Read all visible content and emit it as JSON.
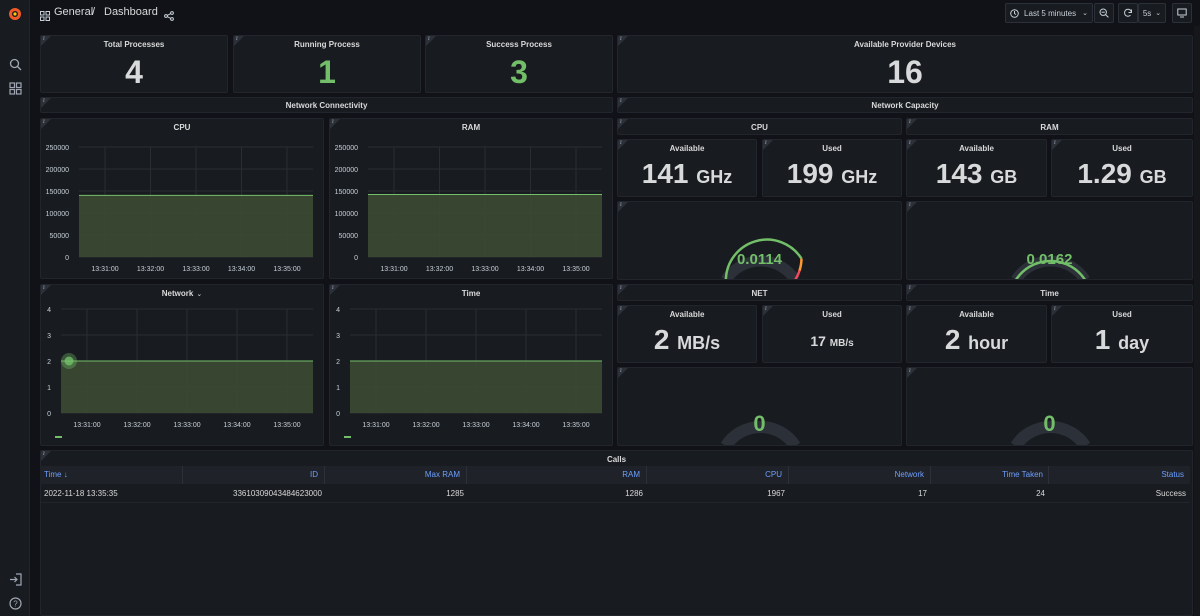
{
  "breadcrumb": {
    "folder": "General",
    "separator": "/",
    "page": "Dashboard"
  },
  "toolbar": {
    "time_range": "Last 5 minutes",
    "refresh_interval": "5s"
  },
  "stats": {
    "total_processes": {
      "title": "Total Processes",
      "value": "4"
    },
    "running_process": {
      "title": "Running Process",
      "value": "1"
    },
    "success_process": {
      "title": "Success Process",
      "value": "3"
    },
    "available_devices": {
      "title": "Available Provider Devices",
      "value": "16"
    }
  },
  "rows": {
    "network_connectivity": "Network Connectivity",
    "network_capacity": "Network Capacity",
    "calls": "Calls"
  },
  "capacity": {
    "cpu": {
      "title": "CPU",
      "available_label": "Available",
      "available_value": "141",
      "available_unit": "GHz",
      "used_label": "Used",
      "used_value": "199",
      "used_unit": "GHz",
      "gauge_value": "0.0114"
    },
    "ram": {
      "title": "RAM",
      "available_label": "Available",
      "available_value": "143",
      "available_unit": "GB",
      "used_label": "Used",
      "used_value": "1.29",
      "used_unit": "GB",
      "gauge_value": "0.0162"
    },
    "net": {
      "title": "NET",
      "available_label": "Available",
      "available_value": "2",
      "available_unit": "MB/s",
      "used_label": "Used",
      "used_value": "17",
      "used_unit": "MB/s",
      "gauge_value": "0"
    },
    "time": {
      "title": "Time",
      "available_label": "Available",
      "available_value": "2",
      "available_unit": "hour",
      "used_label": "Used",
      "used_value": "1",
      "used_unit": "day",
      "gauge_value": "0"
    }
  },
  "colors": {
    "green": "#73bf69",
    "fill": "#3b4a33",
    "gauge_track": "#2c3038",
    "blue": "#6e9fff"
  },
  "chart_data": [
    {
      "type": "area",
      "title": "CPU",
      "x": [
        "13:31:00",
        "13:32:00",
        "13:33:00",
        "13:34:00",
        "13:35:00"
      ],
      "y_ticks": [
        "250000",
        "200000",
        "150000",
        "100000",
        "50000",
        "0"
      ],
      "ylim": [
        0,
        250000
      ],
      "values": [
        140000,
        140000,
        140000,
        140000,
        140000
      ]
    },
    {
      "type": "area",
      "title": "RAM",
      "x": [
        "13:31:00",
        "13:32:00",
        "13:33:00",
        "13:34:00",
        "13:35:00"
      ],
      "y_ticks": [
        "250000",
        "200000",
        "150000",
        "100000",
        "50000",
        "0"
      ],
      "ylim": [
        0,
        250000
      ],
      "values": [
        142000,
        142000,
        142000,
        142000,
        142000
      ]
    },
    {
      "type": "area",
      "title": "Network",
      "x": [
        "13:31:00",
        "13:32:00",
        "13:33:00",
        "13:34:00",
        "13:35:00"
      ],
      "y_ticks": [
        "4",
        "3",
        "2",
        "1",
        "0"
      ],
      "ylim": [
        0,
        4
      ],
      "values": [
        2,
        2,
        2,
        2,
        2
      ]
    },
    {
      "type": "area",
      "title": "Time",
      "x": [
        "13:31:00",
        "13:32:00",
        "13:33:00",
        "13:34:00",
        "13:35:00"
      ],
      "y_ticks": [
        "4",
        "3",
        "2",
        "1",
        "0"
      ],
      "ylim": [
        0,
        4
      ],
      "values": [
        2,
        2,
        2,
        2,
        2
      ]
    }
  ],
  "table": {
    "headers": [
      "Time",
      "ID",
      "Max RAM",
      "RAM",
      "CPU",
      "Network",
      "Time Taken",
      "Status"
    ],
    "sort_indicator": "↓",
    "rows": [
      [
        "2022-11-18 13:35:35",
        "33610309043484623000",
        "1285",
        "1286",
        "1967",
        "17",
        "24",
        "Success"
      ]
    ]
  }
}
